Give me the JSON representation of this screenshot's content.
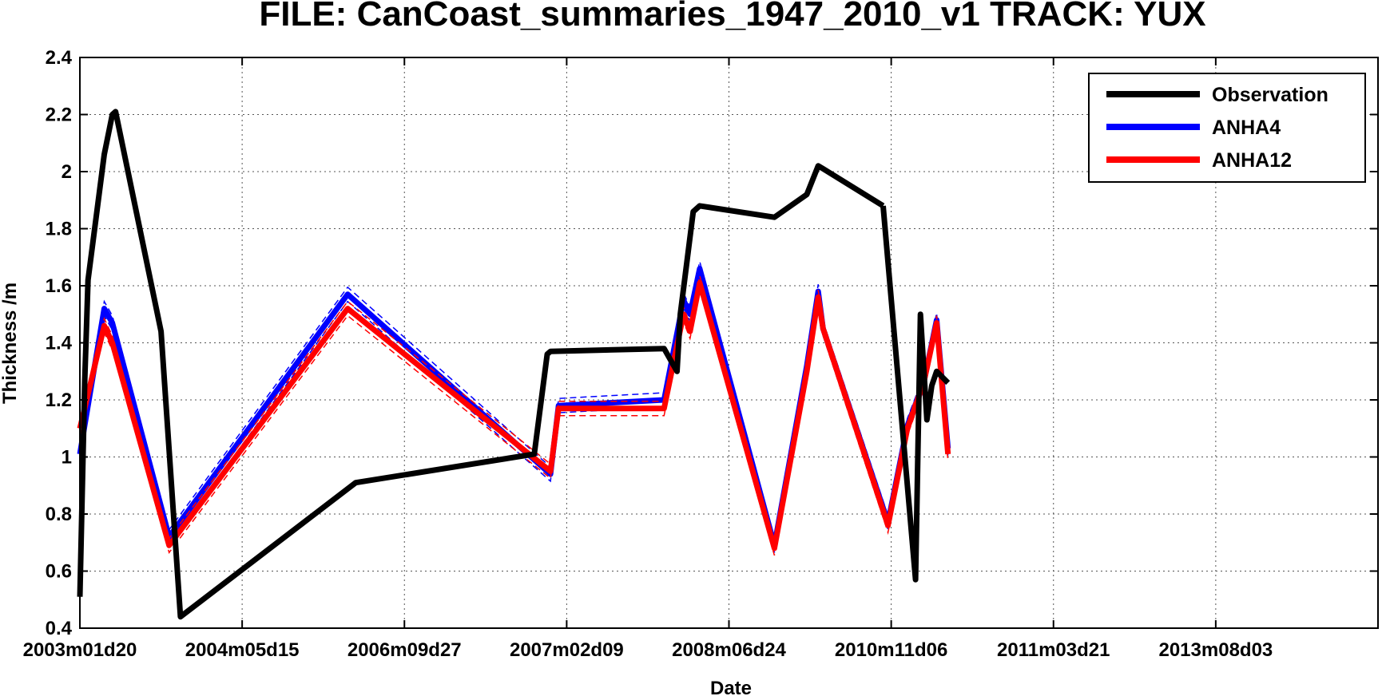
{
  "chart_data": {
    "type": "line",
    "title": "FILE: CanCoast_summaries_1947_2010_v1 TRACK: YUX",
    "xlabel": "Date",
    "ylabel": "Thickness /m",
    "ylim": [
      0.4,
      2.4
    ],
    "yticks": [
      "0.4",
      "0.6",
      "0.8",
      "1",
      "1.2",
      "1.4",
      "1.6",
      "1.8",
      "2",
      "2.2",
      "2.4"
    ],
    "xlim": [
      0,
      8
    ],
    "xtick_labels": [
      "2003m01d20",
      "2004m05d15",
      "2006m09d27",
      "2007m02d09",
      "2008m06d24",
      "2010m11d06",
      "2011m03d21",
      "2013m08d03"
    ],
    "grid": true,
    "legend_position": "top-right",
    "series": [
      {
        "name": "Observation",
        "color": "#000000",
        "x": [
          0.0,
          0.03,
          0.05,
          0.15,
          0.2,
          0.22,
          0.5,
          0.62,
          1.7,
          2.8,
          2.88,
          2.9,
          3.6,
          3.68,
          3.7,
          3.78,
          3.82,
          4.28,
          4.48,
          4.55,
          4.58,
          4.95
        ],
        "y": [
          0.51,
          1.27,
          1.62,
          2.06,
          2.2,
          2.21,
          1.44,
          0.44,
          0.91,
          1.01,
          1.36,
          1.37,
          1.38,
          1.3,
          1.5,
          1.86,
          1.88,
          1.84,
          1.92,
          2.02,
          2.01,
          1.88
        ],
        "x2": [
          4.95,
          5.15,
          5.18,
          5.22,
          5.25,
          5.28,
          5.35
        ],
        "y2": [
          1.88,
          0.57,
          1.5,
          1.13,
          1.25,
          1.3,
          1.26
        ]
      },
      {
        "name": "ANHA4",
        "color": "#0000ff",
        "x": [
          0.0,
          0.15,
          0.2,
          0.55,
          1.65,
          2.9,
          2.95,
          3.6,
          3.72,
          3.76,
          3.82,
          4.28,
          4.48,
          4.55,
          4.58,
          4.98,
          5.1,
          5.2,
          5.28,
          5.35
        ],
        "y": [
          1.01,
          1.52,
          1.47,
          0.72,
          1.57,
          0.94,
          1.18,
          1.2,
          1.55,
          1.5,
          1.66,
          0.69,
          1.32,
          1.58,
          1.45,
          0.77,
          1.11,
          1.26,
          1.48,
          1.03
        ]
      },
      {
        "name": "ANHA12",
        "color": "#ff0000",
        "x": [
          0.0,
          0.15,
          0.2,
          0.55,
          1.65,
          2.9,
          2.95,
          3.6,
          3.72,
          3.76,
          3.82,
          4.28,
          4.48,
          4.55,
          4.58,
          4.98,
          5.1,
          5.2,
          5.28,
          5.35
        ],
        "y": [
          1.1,
          1.46,
          1.4,
          0.69,
          1.52,
          0.95,
          1.17,
          1.17,
          1.5,
          1.44,
          1.61,
          0.68,
          1.3,
          1.56,
          1.45,
          0.76,
          1.1,
          1.26,
          1.47,
          1.01
        ]
      }
    ]
  }
}
